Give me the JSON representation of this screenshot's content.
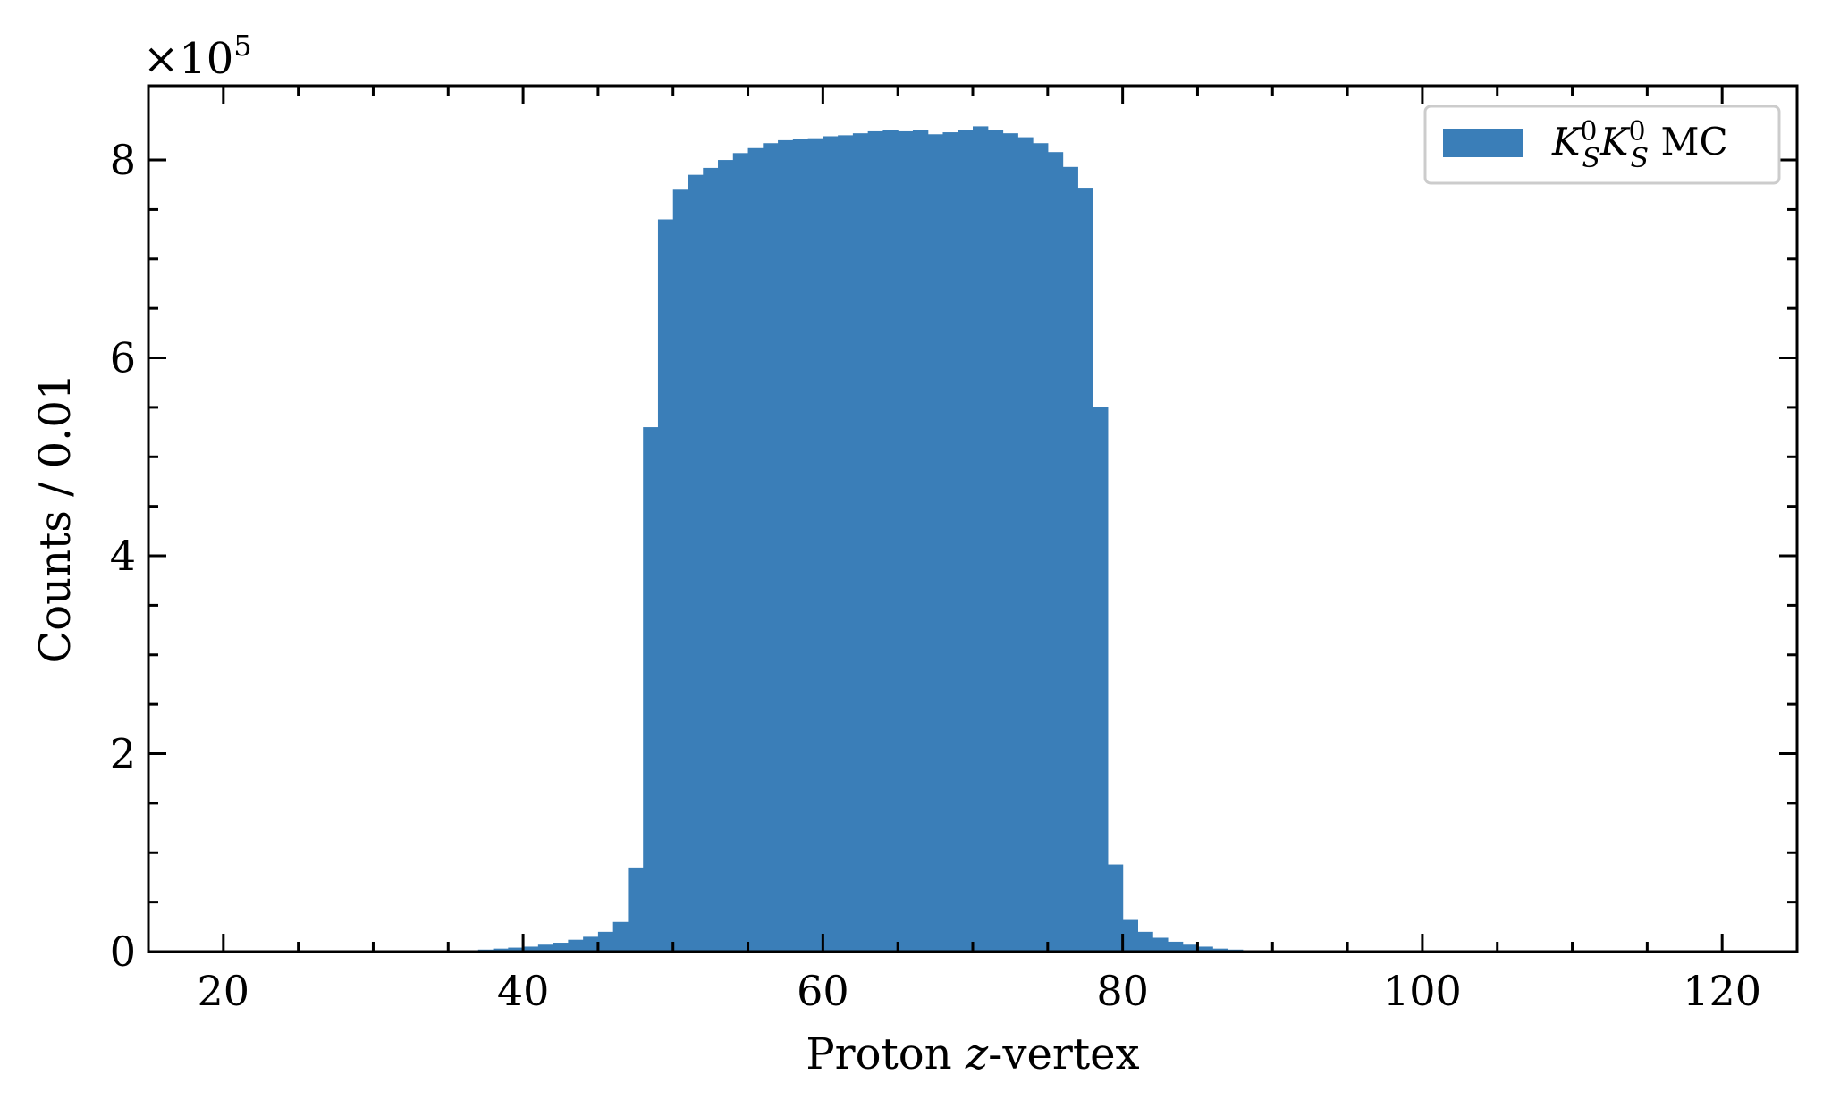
{
  "chart_data": {
    "type": "bar",
    "xlabel_pre": "Proton ",
    "xlabel_var": "z",
    "xlabel_post": "-vertex",
    "ylabel": "Counts / 0.01",
    "y_multiplier_base": "×10",
    "y_multiplier_exp": "5",
    "xlim": [
      15,
      125
    ],
    "ylim": [
      0,
      8.75
    ],
    "x_ticks": [
      20,
      40,
      60,
      80,
      100,
      120
    ],
    "y_ticks": [
      0,
      2,
      4,
      6,
      8
    ],
    "grid": false,
    "legend_position": "top-right",
    "series": [
      {
        "name_k": "K",
        "name_sup": "0",
        "name_sub": "S",
        "name_suffix": " MC",
        "color": "#3a7eb8",
        "bin_start": 35,
        "bin_width": 1,
        "values": [
          0.004,
          0.01,
          0.02,
          0.03,
          0.04,
          0.05,
          0.07,
          0.09,
          0.12,
          0.15,
          0.2,
          0.3,
          0.85,
          5.3,
          7.4,
          7.7,
          7.85,
          7.92,
          8.0,
          8.07,
          8.12,
          8.17,
          8.2,
          8.21,
          8.22,
          8.24,
          8.25,
          8.27,
          8.29,
          8.3,
          8.29,
          8.3,
          8.26,
          8.28,
          8.3,
          8.34,
          8.3,
          8.27,
          8.23,
          8.17,
          8.08,
          7.93,
          7.72,
          5.5,
          0.88,
          0.32,
          0.2,
          0.14,
          0.1,
          0.07,
          0.05,
          0.03,
          0.02,
          0.01,
          0.005
        ]
      }
    ]
  }
}
